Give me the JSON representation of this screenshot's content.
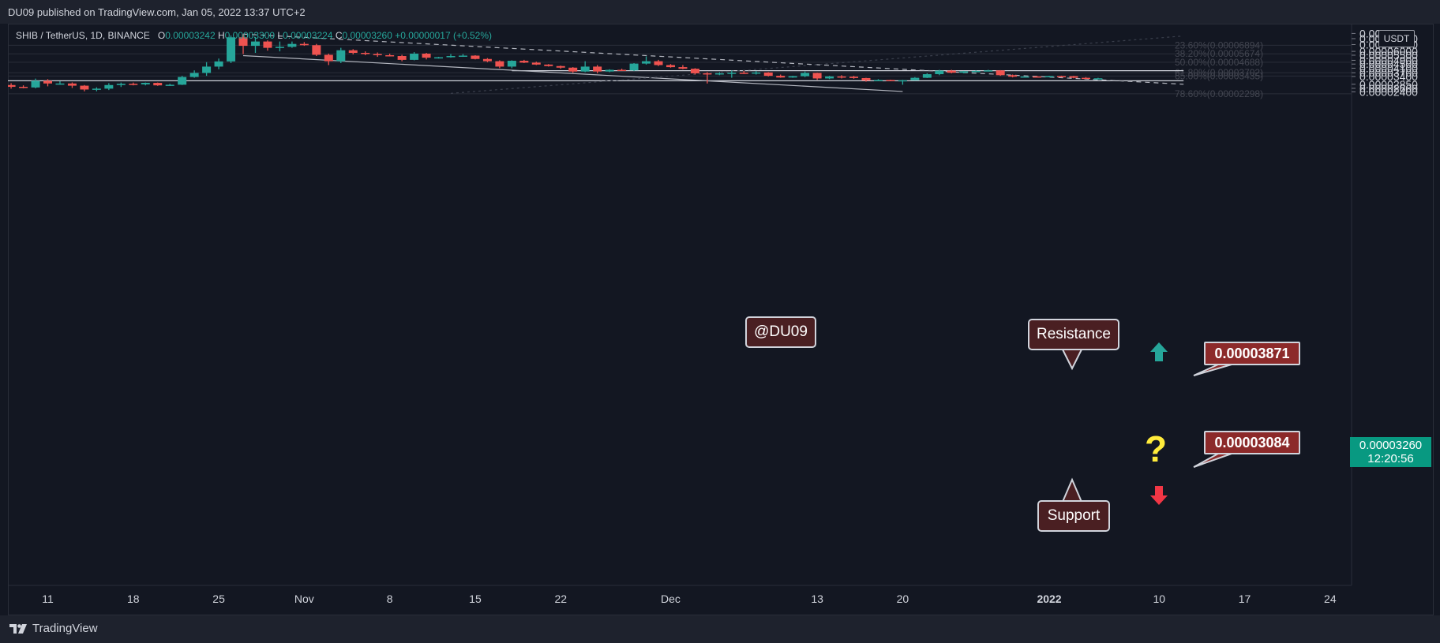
{
  "header": {
    "publisher_line": "DU09 published on TradingView.com, Jan 05, 2022 13:37 UTC+2"
  },
  "legend": {
    "symbol": "SHIB / TetherUS, 1D, BINANCE",
    "open_label": "O",
    "open": "0.00003242",
    "high_label": "H",
    "high": "0.00003300",
    "low_label": "L",
    "low": "0.00003224",
    "close_label": "C",
    "close": "0.00003260",
    "change": "+0.00000017 (+0.52%)"
  },
  "currency_button": "USDT",
  "footer": {
    "brand": "TradingView"
  },
  "last_price": {
    "value": "0.00003260",
    "countdown": "12:20:56"
  },
  "annotations": {
    "watermark": "@DU09",
    "resistance": "Resistance",
    "support": "Support",
    "resistance_price": "0.00003871",
    "support_price": "0.00003084",
    "question_mark": "?"
  },
  "colors": {
    "up": "#26a69a",
    "down": "#ef5350",
    "background": "#131722",
    "grid": "#2a2e39",
    "callout": "#4a1f22",
    "price_tag": "#8c2a2a",
    "last_price": "#089981",
    "arrow_up": "#26a69a",
    "arrow_down": "#f23645",
    "question": "#ffeb3b"
  },
  "chart_data": {
    "type": "candlestick",
    "title": "SHIB / TetherUS, 1D, BINANCE",
    "y_scale": "log",
    "ylim": [
      2.32e-05,
      9.27e-05
    ],
    "y_ticks": [
      "0.0000",
      "0.00008000",
      "0.00007000",
      "0.00006000",
      "0.00005500",
      "0.00004900",
      "0.00004500",
      "0.00004100",
      "0.00003700",
      "0.00003400",
      "0.00002850",
      "0.00002600",
      "0.00002400"
    ],
    "x_ticks": [
      "11",
      "18",
      "25",
      "Nov",
      "8",
      "15",
      "22",
      "Dec",
      "13",
      "20",
      "2022",
      "10",
      "17",
      "24"
    ],
    "x_tick_dates": [
      "2021-10-11",
      "2021-10-18",
      "2021-10-25",
      "2021-11-01",
      "2021-11-08",
      "2021-11-15",
      "2021-11-22",
      "2021-12-01",
      "2021-12-13",
      "2021-12-20",
      "2022-01-01",
      "2022-01-10",
      "2022-01-17",
      "2022-01-24"
    ],
    "candles": [
      {
        "date": "2021-10-07",
        "o": 2.44e-05,
        "h": 3.04e-05,
        "l": 2.36e-05,
        "c": 2.8e-05
      },
      {
        "date": "2021-10-08",
        "o": 2.8e-05,
        "h": 2.92e-05,
        "l": 2.58e-05,
        "c": 2.69e-05
      },
      {
        "date": "2021-10-09",
        "o": 2.69e-05,
        "h": 2.78e-05,
        "l": 2.6e-05,
        "c": 2.65e-05
      },
      {
        "date": "2021-10-10",
        "o": 2.65e-05,
        "h": 3.24e-05,
        "l": 2.6e-05,
        "c": 3.08e-05
      },
      {
        "date": "2021-10-11",
        "o": 3.08e-05,
        "h": 3.2e-05,
        "l": 2.72e-05,
        "c": 2.9e-05
      },
      {
        "date": "2021-10-12",
        "o": 2.9e-05,
        "h": 3.05e-05,
        "l": 2.82e-05,
        "c": 2.9e-05
      },
      {
        "date": "2021-10-13",
        "o": 2.9e-05,
        "h": 2.97e-05,
        "l": 2.62e-05,
        "c": 2.76e-05
      },
      {
        "date": "2021-10-14",
        "o": 2.76e-05,
        "h": 2.8e-05,
        "l": 2.43e-05,
        "c": 2.53e-05
      },
      {
        "date": "2021-10-15",
        "o": 2.53e-05,
        "h": 2.66e-05,
        "l": 2.43e-05,
        "c": 2.58e-05
      },
      {
        "date": "2021-10-16",
        "o": 2.58e-05,
        "h": 2.92e-05,
        "l": 2.5e-05,
        "c": 2.8e-05
      },
      {
        "date": "2021-10-17",
        "o": 2.8e-05,
        "h": 2.96e-05,
        "l": 2.68e-05,
        "c": 2.88e-05
      },
      {
        "date": "2021-10-18",
        "o": 2.88e-05,
        "h": 2.96e-05,
        "l": 2.78e-05,
        "c": 2.84e-05
      },
      {
        "date": "2021-10-19",
        "o": 2.84e-05,
        "h": 2.96e-05,
        "l": 2.78e-05,
        "c": 2.94e-05
      },
      {
        "date": "2021-10-20",
        "o": 2.94e-05,
        "h": 2.96e-05,
        "l": 2.75e-05,
        "c": 2.78e-05
      },
      {
        "date": "2021-10-21",
        "o": 2.78e-05,
        "h": 2.88e-05,
        "l": 2.75e-05,
        "c": 2.82e-05
      },
      {
        "date": "2021-10-22",
        "o": 2.82e-05,
        "h": 3.45e-05,
        "l": 2.8e-05,
        "c": 3.36e-05
      },
      {
        "date": "2021-10-23",
        "o": 3.36e-05,
        "h": 3.9e-05,
        "l": 3.3e-05,
        "c": 3.68e-05
      },
      {
        "date": "2021-10-24",
        "o": 3.68e-05,
        "h": 4.7e-05,
        "l": 3.45e-05,
        "c": 4.25e-05
      },
      {
        "date": "2021-10-25",
        "o": 4.25e-05,
        "h": 5.1e-05,
        "l": 4e-05,
        "c": 4.78e-05
      },
      {
        "date": "2021-10-26",
        "o": 4.78e-05,
        "h": 8.6e-05,
        "l": 4.6e-05,
        "c": 8.25e-05
      },
      {
        "date": "2021-10-27",
        "o": 8.25e-05,
        "h": 8.85e-05,
        "l": 5.65e-05,
        "c": 6.8e-05
      },
      {
        "date": "2021-10-28",
        "o": 6.8e-05,
        "h": 8.3e-05,
        "l": 5.8e-05,
        "c": 7.5e-05
      },
      {
        "date": "2021-10-29",
        "o": 7.5e-05,
        "h": 7.7e-05,
        "l": 6.1e-05,
        "c": 6.5e-05
      },
      {
        "date": "2021-10-30",
        "o": 6.5e-05,
        "h": 7.5e-05,
        "l": 6e-05,
        "c": 6.65e-05
      },
      {
        "date": "2021-10-31",
        "o": 6.65e-05,
        "h": 7.5e-05,
        "l": 6.5e-05,
        "c": 7.1e-05
      },
      {
        "date": "2021-11-01",
        "o": 7.1e-05,
        "h": 7.4e-05,
        "l": 6.8e-05,
        "c": 6.9e-05
      },
      {
        "date": "2021-11-02",
        "o": 6.9e-05,
        "h": 7.1e-05,
        "l": 5.4e-05,
        "c": 5.55e-05
      },
      {
        "date": "2021-11-03",
        "o": 5.55e-05,
        "h": 5.7e-05,
        "l": 4.4e-05,
        "c": 4.8e-05
      },
      {
        "date": "2021-11-04",
        "o": 4.8e-05,
        "h": 6.5e-05,
        "l": 4.6e-05,
        "c": 6.15e-05
      },
      {
        "date": "2021-11-05",
        "o": 6.15e-05,
        "h": 6.3e-05,
        "l": 5.6e-05,
        "c": 5.8e-05
      },
      {
        "date": "2021-11-06",
        "o": 5.8e-05,
        "h": 6e-05,
        "l": 5.5e-05,
        "c": 5.65e-05
      },
      {
        "date": "2021-11-07",
        "o": 5.65e-05,
        "h": 5.85e-05,
        "l": 5.3e-05,
        "c": 5.5e-05
      },
      {
        "date": "2021-11-08",
        "o": 5.5e-05,
        "h": 5.7e-05,
        "l": 5.35e-05,
        "c": 5.4e-05
      },
      {
        "date": "2021-11-09",
        "o": 5.4e-05,
        "h": 5.55e-05,
        "l": 4.8e-05,
        "c": 4.95e-05
      },
      {
        "date": "2021-11-10",
        "o": 4.95e-05,
        "h": 5.9e-05,
        "l": 4.9e-05,
        "c": 5.7e-05
      },
      {
        "date": "2021-11-11",
        "o": 5.7e-05,
        "h": 5.8e-05,
        "l": 5e-05,
        "c": 5.2e-05
      },
      {
        "date": "2021-11-12",
        "o": 5.2e-05,
        "h": 5.3e-05,
        "l": 5.1e-05,
        "c": 5.25e-05
      },
      {
        "date": "2021-11-13",
        "o": 5.25e-05,
        "h": 5.65e-05,
        "l": 5.2e-05,
        "c": 5.4e-05
      },
      {
        "date": "2021-11-14",
        "o": 5.4e-05,
        "h": 5.65e-05,
        "l": 5.3e-05,
        "c": 5.45e-05
      },
      {
        "date": "2021-11-15",
        "o": 5.45e-05,
        "h": 5.5e-05,
        "l": 5e-05,
        "c": 5.05e-05
      },
      {
        "date": "2021-11-16",
        "o": 5.05e-05,
        "h": 5.15e-05,
        "l": 4.7e-05,
        "c": 4.8e-05
      },
      {
        "date": "2021-11-17",
        "o": 4.8e-05,
        "h": 4.9e-05,
        "l": 4.1e-05,
        "c": 4.25e-05
      },
      {
        "date": "2021-11-18",
        "o": 4.25e-05,
        "h": 4.9e-05,
        "l": 4.1e-05,
        "c": 4.85e-05
      },
      {
        "date": "2021-11-19",
        "o": 4.85e-05,
        "h": 4.95e-05,
        "l": 4.6e-05,
        "c": 4.65e-05
      },
      {
        "date": "2021-11-20",
        "o": 4.65e-05,
        "h": 4.75e-05,
        "l": 4.4e-05,
        "c": 4.45e-05
      },
      {
        "date": "2021-11-21",
        "o": 4.45e-05,
        "h": 4.5e-05,
        "l": 4.25e-05,
        "c": 4.3e-05
      },
      {
        "date": "2021-11-22",
        "o": 4.3e-05,
        "h": 4.35e-05,
        "l": 4.05e-05,
        "c": 4.15e-05
      },
      {
        "date": "2021-11-23",
        "o": 4.15e-05,
        "h": 4.2e-05,
        "l": 3.7e-05,
        "c": 3.8e-05
      },
      {
        "date": "2021-11-24",
        "o": 3.8e-05,
        "h": 4.8e-05,
        "l": 3.75e-05,
        "c": 4.25e-05
      },
      {
        "date": "2021-11-25",
        "o": 4.25e-05,
        "h": 4.4e-05,
        "l": 3.65e-05,
        "c": 3.8e-05
      },
      {
        "date": "2021-11-26",
        "o": 3.8e-05,
        "h": 4e-05,
        "l": 3.75e-05,
        "c": 3.95e-05
      },
      {
        "date": "2021-11-27",
        "o": 3.95e-05,
        "h": 4.05e-05,
        "l": 3.85e-05,
        "c": 3.9e-05
      },
      {
        "date": "2021-11-28",
        "o": 3.9e-05,
        "h": 4.6e-05,
        "l": 3.85e-05,
        "c": 4.55e-05
      },
      {
        "date": "2021-11-29",
        "o": 4.55e-05,
        "h": 5.35e-05,
        "l": 4.45e-05,
        "c": 4.8e-05
      },
      {
        "date": "2021-11-30",
        "o": 4.8e-05,
        "h": 4.95e-05,
        "l": 4.3e-05,
        "c": 4.4e-05
      },
      {
        "date": "2021-12-01",
        "o": 4.4e-05,
        "h": 4.5e-05,
        "l": 4.15e-05,
        "c": 4.2e-05
      },
      {
        "date": "2021-12-02",
        "o": 4.2e-05,
        "h": 4.4e-05,
        "l": 4e-05,
        "c": 4.05e-05
      },
      {
        "date": "2021-12-03",
        "o": 4.05e-05,
        "h": 4.1e-05,
        "l": 3.55e-05,
        "c": 3.65e-05
      },
      {
        "date": "2021-12-04",
        "o": 3.65e-05,
        "h": 3.75e-05,
        "l": 2.9e-05,
        "c": 3.6e-05
      },
      {
        "date": "2021-12-05",
        "o": 3.6e-05,
        "h": 3.75e-05,
        "l": 3.5e-05,
        "c": 3.65e-05
      },
      {
        "date": "2021-12-06",
        "o": 3.65e-05,
        "h": 3.9e-05,
        "l": 3.3e-05,
        "c": 3.7e-05
      },
      {
        "date": "2021-12-07",
        "o": 3.7e-05,
        "h": 3.85e-05,
        "l": 3.6e-05,
        "c": 3.65e-05
      },
      {
        "date": "2021-12-08",
        "o": 3.65e-05,
        "h": 3.85e-05,
        "l": 3.55e-05,
        "c": 3.72e-05
      },
      {
        "date": "2021-12-09",
        "o": 3.72e-05,
        "h": 3.75e-05,
        "l": 3.4e-05,
        "c": 3.45e-05
      },
      {
        "date": "2021-12-10",
        "o": 3.45e-05,
        "h": 3.55e-05,
        "l": 3.3e-05,
        "c": 3.32e-05
      },
      {
        "date": "2021-12-11",
        "o": 3.32e-05,
        "h": 3.45e-05,
        "l": 3.3e-05,
        "c": 3.42e-05
      },
      {
        "date": "2021-12-12",
        "o": 3.42e-05,
        "h": 3.8e-05,
        "l": 3.35e-05,
        "c": 3.68e-05
      },
      {
        "date": "2021-12-13",
        "o": 3.68e-05,
        "h": 3.7e-05,
        "l": 3.15e-05,
        "c": 3.25e-05
      },
      {
        "date": "2021-12-14",
        "o": 3.25e-05,
        "h": 3.45e-05,
        "l": 3.2e-05,
        "c": 3.4e-05
      },
      {
        "date": "2021-12-15",
        "o": 3.4e-05,
        "h": 3.5e-05,
        "l": 3.25e-05,
        "c": 3.38e-05
      },
      {
        "date": "2021-12-16",
        "o": 3.38e-05,
        "h": 3.45e-05,
        "l": 3.23e-05,
        "c": 3.28e-05
      },
      {
        "date": "2021-12-17",
        "o": 3.28e-05,
        "h": 3.3e-05,
        "l": 3.02e-05,
        "c": 3.1e-05
      },
      {
        "date": "2021-12-18",
        "o": 3.1e-05,
        "h": 3.2e-05,
        "l": 3.05e-05,
        "c": 3.14e-05
      },
      {
        "date": "2021-12-19",
        "o": 3.14e-05,
        "h": 3.16e-05,
        "l": 3.05e-05,
        "c": 3.07e-05
      },
      {
        "date": "2021-12-20",
        "o": 3.07e-05,
        "h": 3.15e-05,
        "l": 2.82e-05,
        "c": 3.12e-05
      },
      {
        "date": "2021-12-21",
        "o": 3.12e-05,
        "h": 3.35e-05,
        "l": 3.1e-05,
        "c": 3.3e-05
      },
      {
        "date": "2021-12-22",
        "o": 3.3e-05,
        "h": 3.65e-05,
        "l": 3.28e-05,
        "c": 3.58e-05
      },
      {
        "date": "2021-12-23",
        "o": 3.58e-05,
        "h": 3.95e-05,
        "l": 3.5e-05,
        "c": 3.88e-05
      },
      {
        "date": "2021-12-24",
        "o": 3.88e-05,
        "h": 3.95e-05,
        "l": 3.65e-05,
        "c": 3.7e-05
      },
      {
        "date": "2021-12-25",
        "o": 3.7e-05,
        "h": 3.85e-05,
        "l": 3.65e-05,
        "c": 3.82e-05
      },
      {
        "date": "2021-12-26",
        "o": 3.82e-05,
        "h": 3.9e-05,
        "l": 3.78e-05,
        "c": 3.85e-05
      },
      {
        "date": "2021-12-27",
        "o": 3.85e-05,
        "h": 3.95e-05,
        "l": 3.82e-05,
        "c": 3.9e-05
      },
      {
        "date": "2021-12-28",
        "o": 3.9e-05,
        "h": 3.92e-05,
        "l": 3.45e-05,
        "c": 3.5e-05
      },
      {
        "date": "2021-12-29",
        "o": 3.5e-05,
        "h": 3.55e-05,
        "l": 3.33e-05,
        "c": 3.38e-05
      },
      {
        "date": "2021-12-30",
        "o": 3.38e-05,
        "h": 3.42e-05,
        "l": 3.35e-05,
        "c": 3.4e-05
      },
      {
        "date": "2021-12-31",
        "o": 3.4e-05,
        "h": 3.45e-05,
        "l": 3.32e-05,
        "c": 3.36e-05
      },
      {
        "date": "2022-01-01",
        "o": 3.36e-05,
        "h": 3.45e-05,
        "l": 3.34e-05,
        "c": 3.43e-05
      },
      {
        "date": "2022-01-02",
        "o": 3.43e-05,
        "h": 3.46e-05,
        "l": 3.38e-05,
        "c": 3.42e-05
      },
      {
        "date": "2022-01-03",
        "o": 3.42e-05,
        "h": 3.45e-05,
        "l": 3.26e-05,
        "c": 3.3e-05
      },
      {
        "date": "2022-01-04",
        "o": 3.3e-05,
        "h": 3.35e-05,
        "l": 3.23e-05,
        "c": 3.242e-05
      },
      {
        "date": "2022-01-05",
        "o": 3.242e-05,
        "h": 3.3e-05,
        "l": 3.224e-05,
        "c": 3.26e-05
      }
    ],
    "fib_levels": [
      {
        "label": "23.60%(0.00006894)",
        "value": 6.894e-05
      },
      {
        "label": "38.20%(0.00005674)",
        "value": 5.674e-05
      },
      {
        "label": "50.00%(0.00004688)",
        "value": 4.688e-05
      },
      {
        "label": "61.80%(0.00003702)",
        "value": 3.702e-05
      },
      {
        "label": "65.00%(0.00003435)",
        "value": 3.435e-05
      },
      {
        "label": "78.60%(0.00002298)",
        "value": 2.298e-05
      }
    ],
    "horizontal_levels": [
      {
        "name": "resistance",
        "value": 3.871e-05,
        "from": "2021-11-18",
        "to": "2022-01-12"
      },
      {
        "name": "support",
        "value": 3.084e-05,
        "from": "2021-10-07",
        "to": "2022-01-12"
      }
    ],
    "trendlines": [
      {
        "style": "dashed",
        "from": {
          "date": "2021-10-27",
          "value": 8.87e-05
        },
        "to": {
          "date": "2022-01-12",
          "value": 2.85e-05
        }
      },
      {
        "style": "solid",
        "from": {
          "date": "2021-10-27",
          "value": 5.45e-05
        },
        "to": {
          "date": "2021-12-20",
          "value": 2.42e-05
        }
      },
      {
        "style": "dotted",
        "from": {
          "date": "2021-11-13",
          "value": 2.32e-05
        },
        "to": {
          "date": "2022-01-12",
          "value": 8.5e-05
        }
      }
    ]
  }
}
